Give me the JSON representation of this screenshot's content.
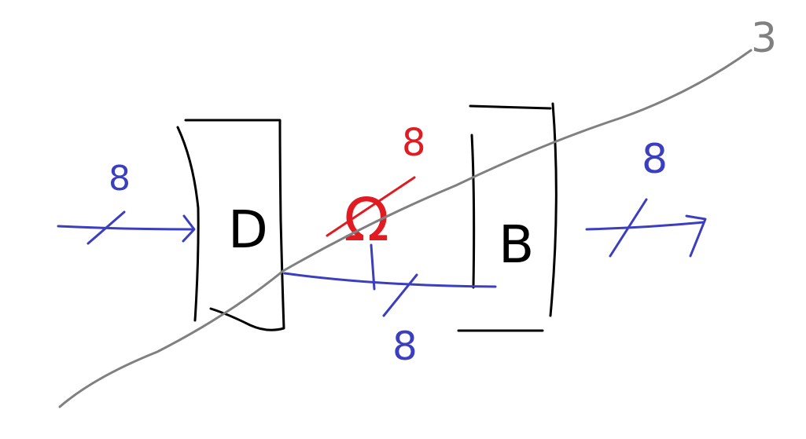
{
  "diagram": {
    "colors": {
      "ink": "#000000",
      "signal": "#3b3fbf",
      "constant": "#e11b22",
      "axis": "#808080",
      "background": "#ffffff"
    },
    "blocks": {
      "d": {
        "label": "D"
      },
      "b": {
        "label": "B"
      }
    },
    "bus_widths": {
      "input": "8",
      "between_blocks": "8",
      "constant": "8",
      "output": "8"
    },
    "constant_symbol": "Ω",
    "stage_line_label": "3"
  }
}
